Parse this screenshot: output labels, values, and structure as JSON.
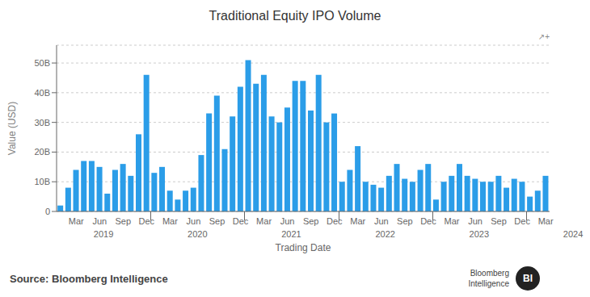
{
  "chart_data": {
    "type": "bar",
    "title": "Traditional Equity IPO Volume",
    "xlabel": "Trading Date",
    "ylabel": "Value (USD)",
    "color": "#2b9de8",
    "categories": [
      null,
      null,
      "Mar",
      null,
      null,
      "Jun",
      null,
      null,
      "Sep",
      null,
      null,
      "Dec",
      null,
      null,
      "Mar",
      null,
      null,
      "Jun",
      null,
      null,
      "Sep",
      null,
      null,
      "Dec",
      null,
      null,
      "Mar",
      null,
      null,
      "Jun",
      null,
      null,
      "Sep",
      null,
      null,
      "Dec",
      null,
      null,
      "Mar",
      null,
      null,
      "Jun",
      null,
      null,
      "Sep",
      null,
      null,
      "Dec",
      null,
      null,
      "Mar",
      null,
      null,
      "Jun",
      null,
      null,
      "Sep",
      null,
      null,
      "Dec",
      null,
      null,
      "Mar"
    ],
    "values": [
      2,
      8,
      14,
      17,
      17,
      15,
      6,
      14,
      16,
      12,
      26,
      46,
      13,
      15,
      7,
      4,
      7,
      8,
      19,
      33,
      39,
      21,
      32,
      42,
      51,
      43,
      46,
      32,
      30,
      35,
      44,
      44,
      34,
      46,
      30,
      33,
      10,
      14,
      22,
      10,
      9,
      8,
      12,
      16,
      11,
      10,
      14,
      16,
      4,
      10,
      12,
      16,
      12,
      11,
      10,
      10,
      12,
      8,
      11,
      10,
      5,
      7,
      12
    ],
    "year_labels": [
      "2019",
      "2020",
      "2021",
      "2022",
      "2023",
      "2024"
    ],
    "ylim": [
      0,
      56
    ],
    "yticks": [
      0,
      {
        "value": 10,
        "label": "10B"
      },
      {
        "value": 20,
        "label": "20B"
      },
      {
        "value": 30,
        "label": "30B"
      },
      {
        "value": 40,
        "label": "40B"
      },
      {
        "value": 50,
        "label": "50B"
      }
    ],
    "grid": true,
    "annotations": [
      "Source: Bloomberg Intelligence",
      "Bloomberg\nIntelligence",
      "BI",
      "↗+"
    ]
  }
}
